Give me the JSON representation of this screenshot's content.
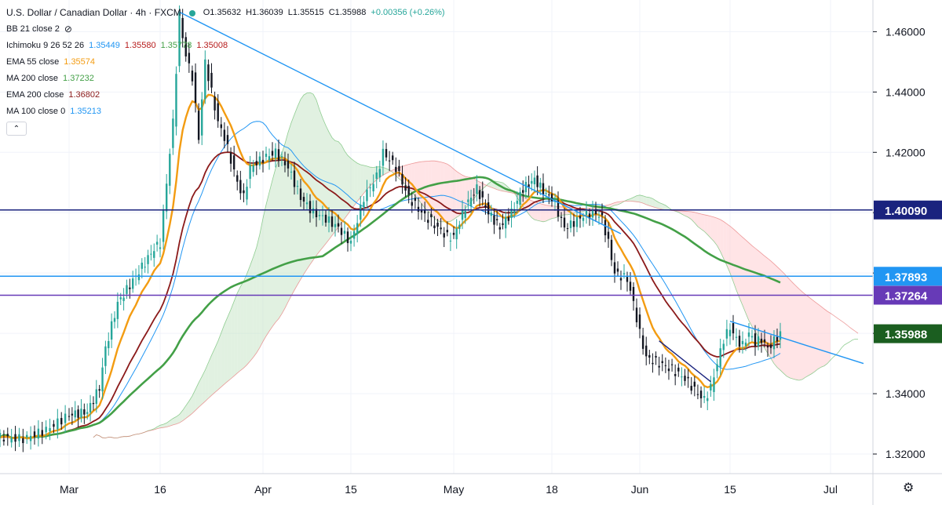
{
  "header": {
    "symbol_title": "U.S. Dollar / Canadian Dollar · 4h · FXCM",
    "open": "O1.35632",
    "high": "H1.36039",
    "low": "L1.35515",
    "close": "C1.35988",
    "change": "+0.00356 (+0.26%)"
  },
  "indicators": [
    {
      "label": "BB 21 close 2",
      "values": [],
      "colors": []
    },
    {
      "label": "Ichimoku 9 26 52 26",
      "values": [
        "1.35449",
        "1.35580",
        "1.35778",
        "1.35008"
      ],
      "colors": [
        "#2196f3",
        "#b71c1c",
        "#43a047",
        "#b71c1c"
      ]
    },
    {
      "label": "EMA 55 close",
      "values": [
        "1.35574"
      ],
      "colors": [
        "#f39c12"
      ]
    },
    {
      "label": "MA 200 close",
      "values": [
        "1.37232"
      ],
      "colors": [
        "#43a047"
      ]
    },
    {
      "label": "EMA 200 close",
      "values": [
        "1.36802"
      ],
      "colors": [
        "#8b1a1a"
      ]
    },
    {
      "label": "MA 100 close 0",
      "values": [
        "1.35213"
      ],
      "colors": [
        "#2196f3"
      ]
    }
  ],
  "chart_data": {
    "type": "candlestick",
    "symbol": "USDCAD",
    "timeframe": "4h",
    "x_ticks": [
      "Mar",
      "16",
      "Apr",
      "15",
      "May",
      "18",
      "Jun",
      "15",
      "Jul"
    ],
    "y_ticks": [
      "1.46000",
      "1.44000",
      "1.42000",
      "1.40000",
      "1.38000",
      "1.36000",
      "1.34000",
      "1.32000"
    ],
    "ylim": [
      1.3135,
      1.4705
    ],
    "price_labels": [
      {
        "value": "1.40090",
        "color": "#1a237e"
      },
      {
        "value": "1.37893",
        "color": "#2196f3"
      },
      {
        "value": "1.37264",
        "color": "#673ab7"
      },
      {
        "value": "1.35988",
        "color": "#1b5e20"
      }
    ],
    "key_points": [
      {
        "x": "Feb 20",
        "close": 1.3255
      },
      {
        "x": "Mar 1",
        "close": 1.333
      },
      {
        "x": "Mar 9",
        "close": 1.37
      },
      {
        "x": "Mar 16",
        "close": 1.39
      },
      {
        "x": "Mar 19",
        "close": 1.465
      },
      {
        "x": "Mar 24",
        "close": 1.432
      },
      {
        "x": "Apr 1",
        "close": 1.415
      },
      {
        "x": "Apr 15",
        "close": 1.39
      },
      {
        "x": "Apr 21",
        "close": 1.42
      },
      {
        "x": "May 1",
        "close": 1.392
      },
      {
        "x": "May 7",
        "close": 1.41
      },
      {
        "x": "May 18",
        "close": 1.405
      },
      {
        "x": "May 25",
        "close": 1.395
      },
      {
        "x": "Jun 1",
        "close": 1.36
      },
      {
        "x": "Jun 11",
        "close": 1.34
      },
      {
        "x": "Jun 15",
        "close": 1.362
      },
      {
        "x": "Jun 22",
        "close": 1.3599
      }
    ]
  },
  "colors": {
    "bull": "#26a69a",
    "bear": "#131722",
    "ema55": "#f39c12",
    "ma200": "#43a047",
    "ema200": "#8b1a1a",
    "ma100": "#2196f3",
    "trend": "#2196f3",
    "cloud_bull": "#c8e6c9",
    "cloud_bear": "#ffcdd2"
  }
}
